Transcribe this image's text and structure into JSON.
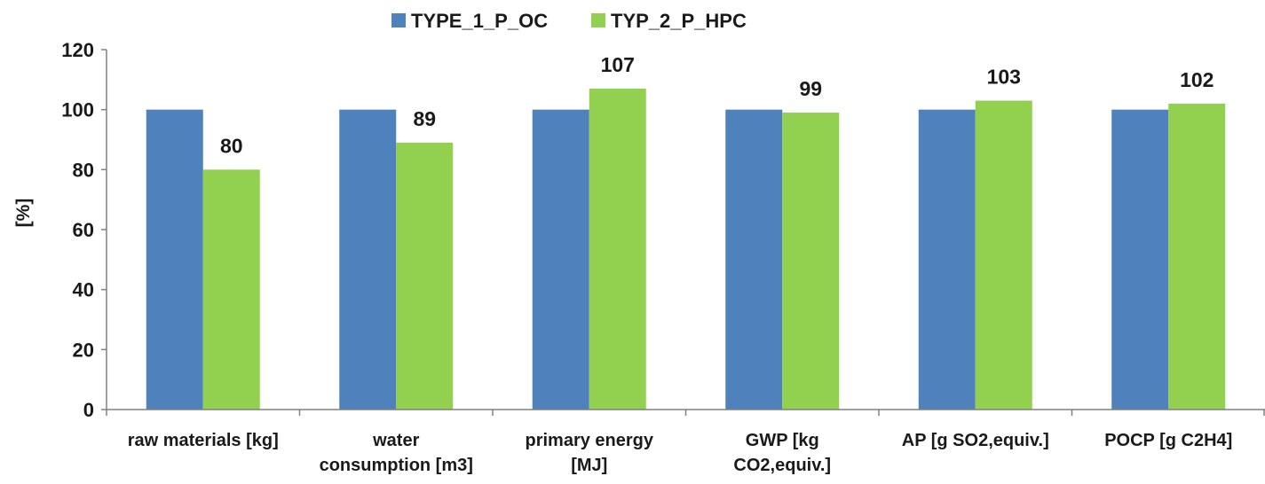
{
  "chart_data": {
    "type": "bar",
    "title": "",
    "xlabel": "",
    "ylabel": "[%]",
    "ylim": [
      0,
      120
    ],
    "yticks": [
      0,
      20,
      40,
      60,
      80,
      100,
      120
    ],
    "grid": false,
    "legend_position": "top-center",
    "categories": [
      [
        "raw materials [kg]"
      ],
      [
        "water",
        "consumption [m3]"
      ],
      [
        "primary energy",
        "[MJ]"
      ],
      [
        "GWP [kg",
        "CO2,equiv.]"
      ],
      [
        "AP [g SO2,equiv.]"
      ],
      [
        "POCP [g C2H4]"
      ]
    ],
    "series": [
      {
        "name": "TYPE_1_P_OC",
        "color": "#4F81BD",
        "values": [
          100,
          100,
          100,
          100,
          100,
          100
        ],
        "show_labels": false
      },
      {
        "name": "TYP_2_P_HPC",
        "color": "#92D050",
        "values": [
          80,
          89,
          107,
          99,
          103,
          102
        ],
        "show_labels": true
      }
    ]
  }
}
